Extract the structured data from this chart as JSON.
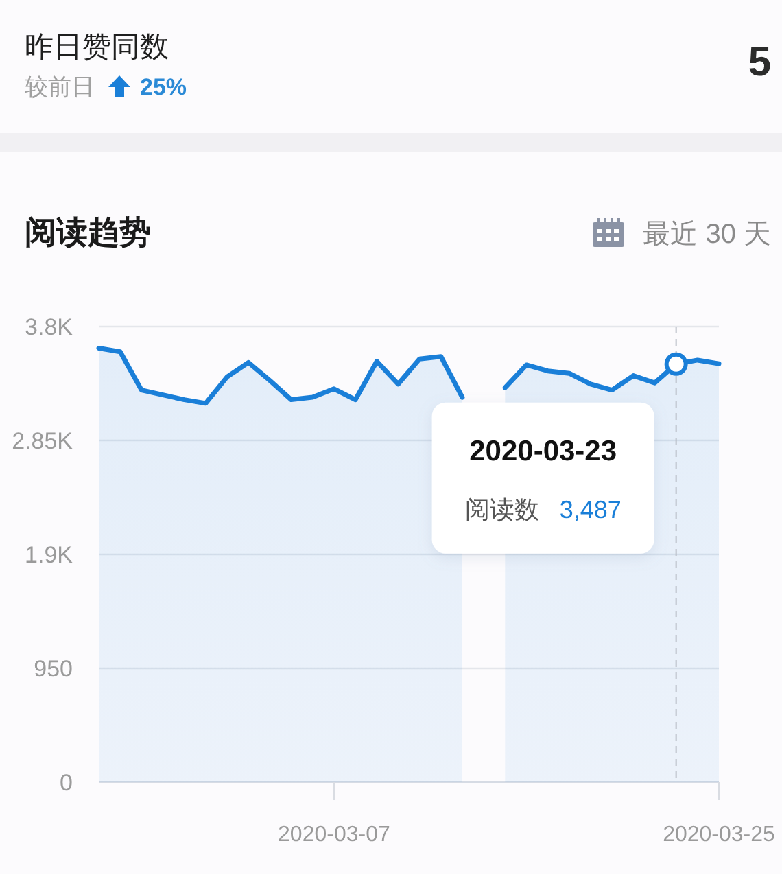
{
  "chart_data": [
    {
      "type": "other",
      "title": "昨日赞同数",
      "subtitle": "较前日",
      "annotations": [
        "25%",
        "5"
      ]
    },
    {
      "type": "area",
      "title": "阅读趋势",
      "subtitle": "最近 30 天",
      "x": [
        "2020-02-25",
        "2020-02-26",
        "2020-02-27",
        "2020-02-28",
        "2020-02-29",
        "2020-03-01",
        "2020-03-02",
        "2020-03-03",
        "2020-03-04",
        "2020-03-05",
        "2020-03-06",
        "2020-03-07",
        "2020-03-08",
        "2020-03-09",
        "2020-03-10",
        "2020-03-11",
        "2020-03-12",
        "2020-03-13",
        "2020-03-14",
        "2020-03-15",
        "2020-03-16",
        "2020-03-17",
        "2020-03-18",
        "2020-03-19",
        "2020-03-20",
        "2020-03-21",
        "2020-03-22",
        "2020-03-23",
        "2020-03-24",
        "2020-03-25"
      ],
      "xlim": [
        "2020-02-25",
        "2020-03-25"
      ],
      "xticks": [
        "2020-03-07",
        "2020-03-25"
      ],
      "ylim": [
        0,
        3800
      ],
      "yticks": [
        0,
        950,
        {
          "value": 1900,
          "label": "1.9K"
        },
        {
          "value": 2850,
          "label": "2.85K"
        },
        {
          "value": 3800,
          "label": "3.8K"
        }
      ],
      "grid": "y",
      "series": [
        {
          "name": "阅读数",
          "color": "#1a7fd8",
          "values": [
            3620,
            3590,
            3270,
            3230,
            3190,
            3160,
            3380,
            3500,
            3350,
            3190,
            3210,
            3280,
            3190,
            3510,
            3320,
            3530,
            3550,
            3210,
            null,
            3290,
            3480,
            3430,
            3410,
            3320,
            3270,
            3390,
            3330,
            3487,
            3520,
            3490
          ]
        }
      ],
      "annotations": [
        "2020-03-23",
        "3,487"
      ],
      "ref_lines": [
        {
          "axis": "x",
          "value": "2020-03-23",
          "color": "#b8bcc6",
          "line_style": "dashed"
        }
      ]
    }
  ]
}
